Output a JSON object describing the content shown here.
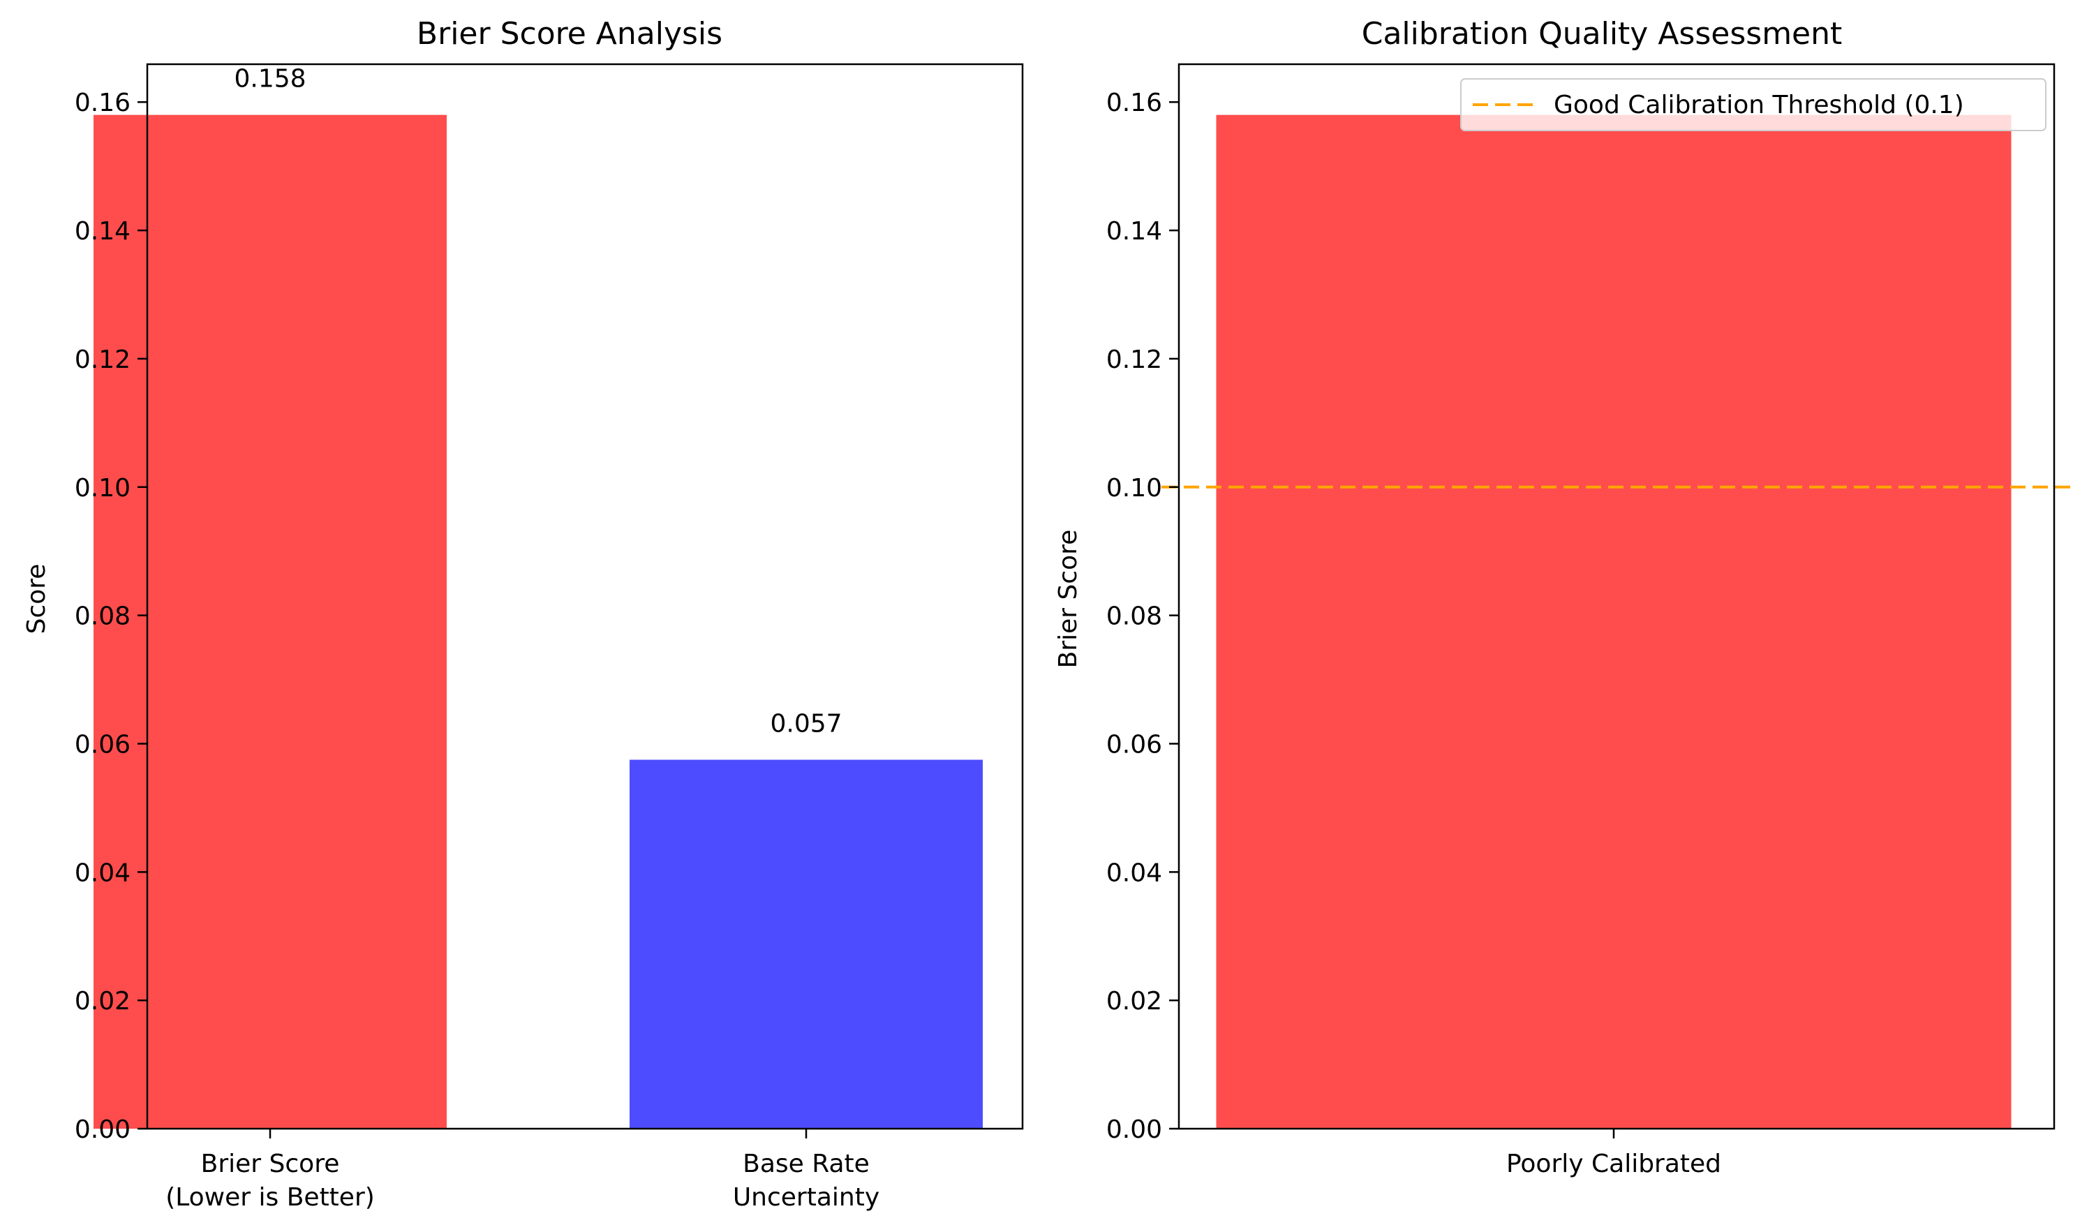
{
  "chart_data": [
    {
      "type": "bar",
      "title": "Brier Score Analysis",
      "xlabel": "",
      "ylabel": "Score",
      "categories": [
        [
          "Brier Score",
          "(Lower is Better)"
        ],
        [
          "Base Rate",
          "Uncertainty"
        ]
      ],
      "values": [
        0.158,
        0.0575
      ],
      "value_labels": [
        "0.158",
        "0.057"
      ],
      "colors": [
        "#ff4d4d",
        "#4d4dff"
      ],
      "ylim": [
        0,
        0.1659
      ],
      "yticks": [
        0.0,
        0.02,
        0.04,
        0.06,
        0.08,
        0.1,
        0.12,
        0.14,
        0.16
      ],
      "ytick_labels": [
        "0.00",
        "0.02",
        "0.04",
        "0.06",
        "0.08",
        "0.10",
        "0.12",
        "0.14",
        "0.16"
      ]
    },
    {
      "type": "bar",
      "title": "Calibration Quality Assessment",
      "xlabel": "",
      "ylabel": "Brier Score",
      "categories": [
        [
          "Poorly Calibrated"
        ]
      ],
      "values": [
        0.158
      ],
      "colors": [
        "#ff4d4d"
      ],
      "ylim": [
        0,
        0.1659
      ],
      "yticks": [
        0.0,
        0.02,
        0.04,
        0.06,
        0.08,
        0.1,
        0.12,
        0.14,
        0.16
      ],
      "ytick_labels": [
        "0.00",
        "0.02",
        "0.04",
        "0.06",
        "0.08",
        "0.10",
        "0.12",
        "0.14",
        "0.16"
      ],
      "threshold": {
        "value": 0.1,
        "label": "Good Calibration Threshold (0.1)",
        "color": "#ffa500",
        "style": "dashed"
      },
      "legend_position": "top-right"
    }
  ]
}
